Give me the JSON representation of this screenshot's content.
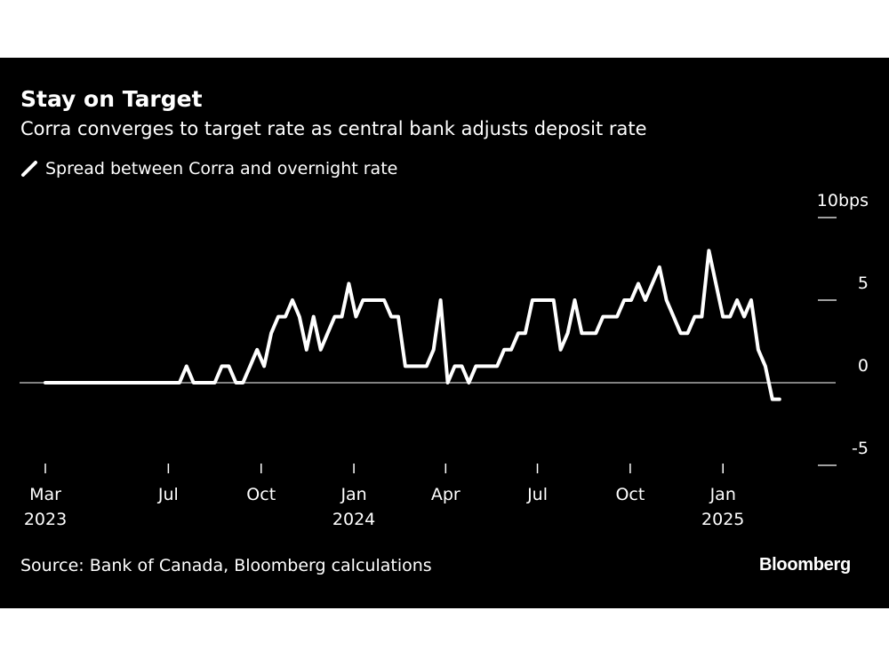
{
  "header": {
    "title": "Stay on Target",
    "subtitle": "Corra converges to target rate as central bank adjusts deposit rate"
  },
  "footer": {
    "source": "Source: Bank of Canada, Bloomberg calculations",
    "logo": "Bloomberg"
  },
  "colors": {
    "background": "#000000",
    "line": "#ffffff",
    "text": "#ffffff"
  },
  "chart_data": {
    "type": "line",
    "title": "Stay on Target",
    "subtitle": "Corra converges to target rate as central bank adjusts deposit rate",
    "legend": {
      "position": "top-left",
      "entries": [
        "Spread between Corra and overnight rate"
      ]
    },
    "yunit": "bps",
    "ylim": [
      -5,
      10
    ],
    "yticks": [
      {
        "value": 10,
        "label": "10bps"
      },
      {
        "value": 5,
        "label": "5"
      },
      {
        "value": 0,
        "label": "0"
      },
      {
        "value": -5,
        "label": "-5"
      }
    ],
    "xticks": [
      {
        "date": "2023-03-01",
        "label": "Mar",
        "year": "2023"
      },
      {
        "date": "2023-07-01",
        "label": "Jul",
        "year": ""
      },
      {
        "date": "2023-10-01",
        "label": "Oct",
        "year": ""
      },
      {
        "date": "2024-01-01",
        "label": "Jan",
        "year": "2024"
      },
      {
        "date": "2024-04-01",
        "label": "Apr",
        "year": ""
      },
      {
        "date": "2024-07-01",
        "label": "Jul",
        "year": ""
      },
      {
        "date": "2024-10-01",
        "label": "Oct",
        "year": ""
      },
      {
        "date": "2025-01-01",
        "label": "Jan",
        "year": "2025"
      }
    ],
    "grid": false,
    "series": [
      {
        "name": "Spread between Corra and overnight rate",
        "x": [
          "2023-03-01",
          "2023-03-08",
          "2023-03-15",
          "2023-03-22",
          "2023-03-29",
          "2023-04-05",
          "2023-04-12",
          "2023-04-19",
          "2023-04-26",
          "2023-05-03",
          "2023-05-10",
          "2023-05-17",
          "2023-05-24",
          "2023-05-31",
          "2023-06-07",
          "2023-06-14",
          "2023-06-21",
          "2023-06-28",
          "2023-07-05",
          "2023-07-12",
          "2023-07-19",
          "2023-07-26",
          "2023-08-02",
          "2023-08-09",
          "2023-08-16",
          "2023-08-23",
          "2023-08-30",
          "2023-09-06",
          "2023-09-13",
          "2023-09-20",
          "2023-09-27",
          "2023-10-04",
          "2023-10-11",
          "2023-10-18",
          "2023-10-25",
          "2023-11-01",
          "2023-11-08",
          "2023-11-15",
          "2023-11-22",
          "2023-11-29",
          "2023-12-06",
          "2023-12-13",
          "2023-12-20",
          "2023-12-27",
          "2024-01-03",
          "2024-01-10",
          "2024-01-17",
          "2024-01-24",
          "2024-01-31",
          "2024-02-07",
          "2024-02-14",
          "2024-02-21",
          "2024-02-28",
          "2024-03-06",
          "2024-03-13",
          "2024-03-20",
          "2024-03-27",
          "2024-04-03",
          "2024-04-10",
          "2024-04-17",
          "2024-04-24",
          "2024-05-01",
          "2024-05-08",
          "2024-05-15",
          "2024-05-22",
          "2024-05-29",
          "2024-06-05",
          "2024-06-12",
          "2024-06-19",
          "2024-06-26",
          "2024-07-03",
          "2024-07-10",
          "2024-07-17",
          "2024-07-24",
          "2024-07-31",
          "2024-08-07",
          "2024-08-14",
          "2024-08-21",
          "2024-08-28",
          "2024-09-04",
          "2024-09-11",
          "2024-09-18",
          "2024-09-25",
          "2024-10-02",
          "2024-10-09",
          "2024-10-16",
          "2024-10-23",
          "2024-10-30",
          "2024-11-06",
          "2024-11-13",
          "2024-11-20",
          "2024-11-27",
          "2024-12-04",
          "2024-12-11",
          "2024-12-18",
          "2024-12-25",
          "2025-01-01",
          "2025-01-08",
          "2025-01-15",
          "2025-01-22",
          "2025-01-29",
          "2025-02-05",
          "2025-02-12",
          "2025-02-19",
          "2025-02-26"
        ],
        "values": [
          0,
          0,
          0,
          0,
          0,
          0,
          0,
          0,
          0,
          0,
          0,
          0,
          0,
          0,
          0,
          0,
          0,
          0,
          0,
          0,
          1,
          0,
          0,
          0,
          0,
          1,
          1,
          0,
          0,
          1,
          2,
          1,
          3,
          4,
          4,
          5,
          4,
          2,
          4,
          2,
          3,
          4,
          4,
          6,
          4,
          5,
          5,
          5,
          5,
          4,
          4,
          1,
          1,
          1,
          1,
          2,
          5,
          0,
          1,
          1,
          0,
          1,
          1,
          1,
          1,
          2,
          2,
          3,
          3,
          5,
          5,
          5,
          5,
          2,
          3,
          5,
          3,
          3,
          3,
          4,
          4,
          4,
          5,
          5,
          6,
          5,
          6,
          7,
          5,
          4,
          3,
          3,
          4,
          4,
          8,
          6,
          4,
          4,
          5,
          4,
          5,
          2,
          1,
          -1,
          -1
        ]
      }
    ]
  }
}
